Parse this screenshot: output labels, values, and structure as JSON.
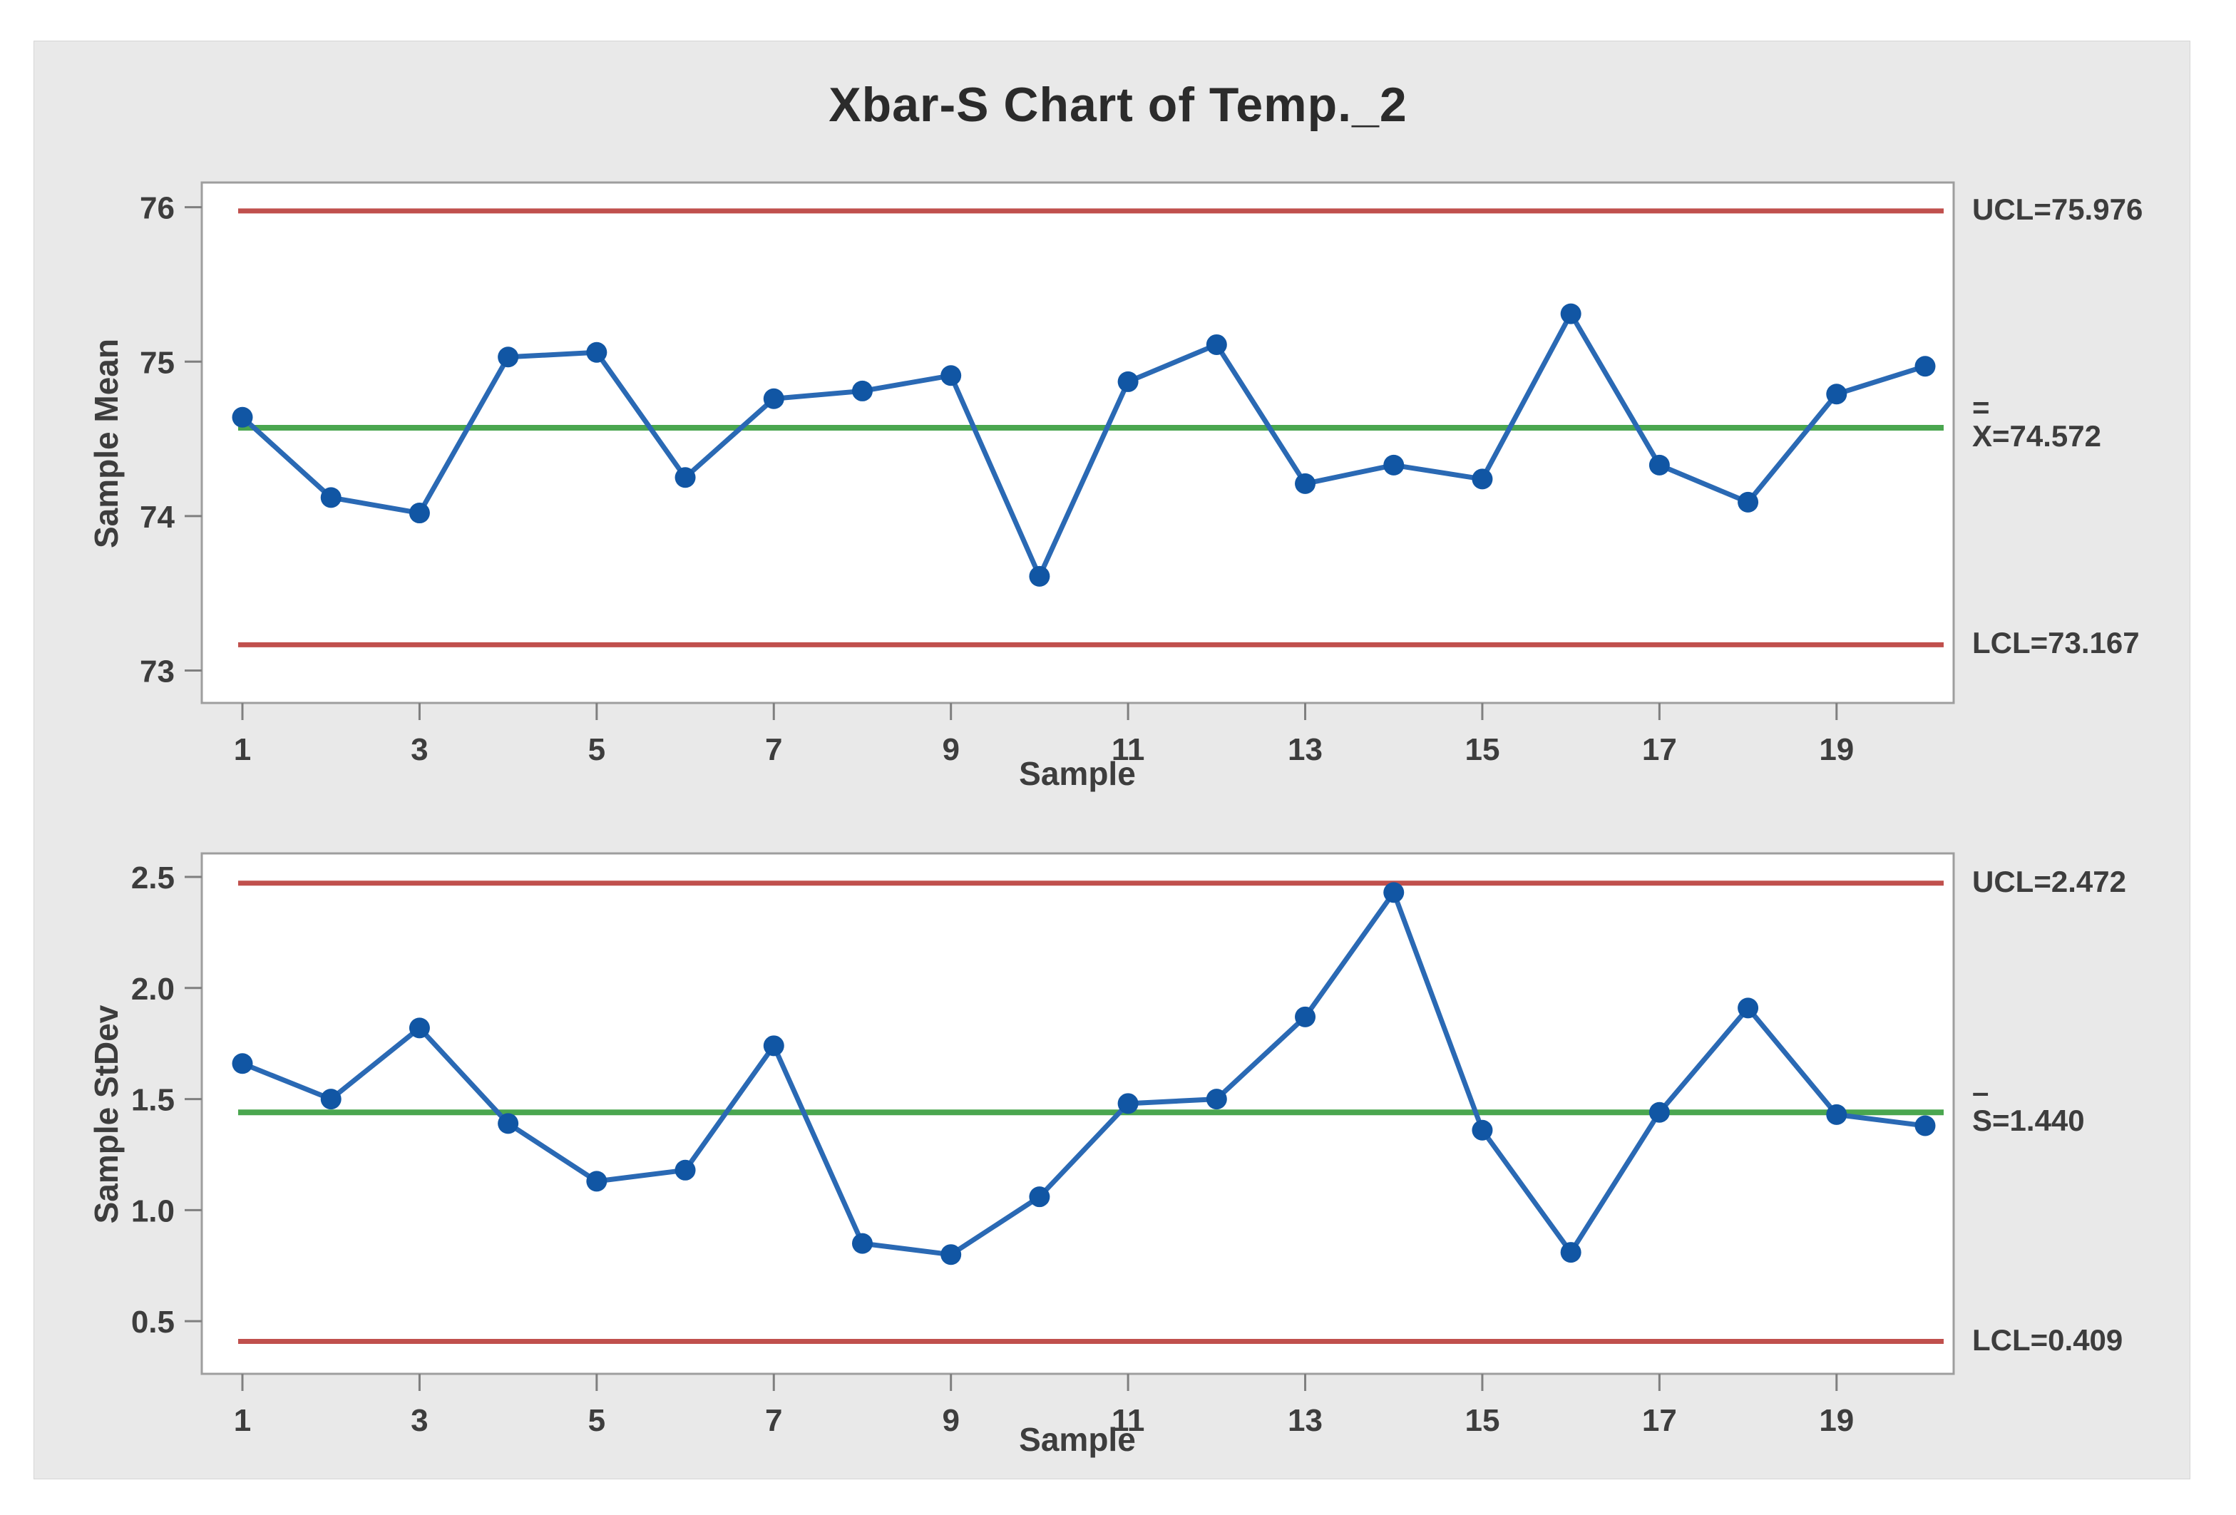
{
  "title": "Xbar-S Chart of Temp._2",
  "colors": {
    "panel_bg": "#e9e9e9",
    "page_bg": "#ffffff",
    "plot_bg": "#ffffff",
    "plot_border": "#9e9e9e",
    "tick": "#7f7f7f",
    "text": "#3d3d3d",
    "series_line": "#2a69b4",
    "marker": "#1156a4",
    "center_green": "#4aa64f",
    "limit_red": "#c0504d"
  },
  "chart_data": [
    {
      "type": "line",
      "name": "xbar-chart",
      "ylabel": "Sample Mean",
      "xlabel": "Sample",
      "x": [
        1,
        2,
        3,
        4,
        5,
        6,
        7,
        8,
        9,
        10,
        11,
        12,
        13,
        14,
        15,
        16,
        17,
        18,
        19,
        20
      ],
      "values": [
        74.64,
        74.12,
        74.02,
        75.03,
        75.06,
        74.25,
        74.76,
        74.81,
        74.91,
        73.61,
        74.87,
        75.11,
        74.21,
        74.33,
        74.24,
        75.31,
        74.33,
        74.09,
        74.79,
        74.97
      ],
      "center": 74.572,
      "ucl": 75.976,
      "lcl": 73.167,
      "labels": {
        "ucl": "UCL=75.976",
        "center_top": "=",
        "center": "X=74.572",
        "lcl": "LCL=73.167"
      },
      "ylim": [
        72.79,
        76.16
      ],
      "yticks": [
        73,
        74,
        75,
        76
      ],
      "ytick_labels": [
        "73",
        "74",
        "75",
        "76"
      ],
      "xticks": [
        1,
        3,
        5,
        7,
        9,
        11,
        13,
        15,
        17,
        19
      ],
      "grid": false,
      "legend": null
    },
    {
      "type": "line",
      "name": "s-chart",
      "ylabel": "Sample StDev",
      "xlabel": "Sample",
      "x": [
        1,
        2,
        3,
        4,
        5,
        6,
        7,
        8,
        9,
        10,
        11,
        12,
        13,
        14,
        15,
        16,
        17,
        18,
        19,
        20
      ],
      "values": [
        1.66,
        1.5,
        1.82,
        1.39,
        1.13,
        1.18,
        1.74,
        0.85,
        0.8,
        1.06,
        1.48,
        1.5,
        1.87,
        2.43,
        1.36,
        0.81,
        1.44,
        1.91,
        1.43,
        1.38
      ],
      "center": 1.44,
      "ucl": 2.472,
      "lcl": 0.409,
      "labels": {
        "ucl": "UCL=2.472",
        "center_top": "–",
        "center": "S=1.440",
        "lcl": "LCL=0.409"
      },
      "ylim": [
        0.263,
        2.606
      ],
      "yticks": [
        0.5,
        1.0,
        1.5,
        2.0,
        2.5
      ],
      "ytick_labels": [
        "0.5",
        "1.0",
        "1.5",
        "2.0",
        "2.5"
      ],
      "xticks": [
        1,
        3,
        5,
        7,
        9,
        11,
        13,
        15,
        17,
        19
      ],
      "grid": false,
      "legend": null
    }
  ]
}
